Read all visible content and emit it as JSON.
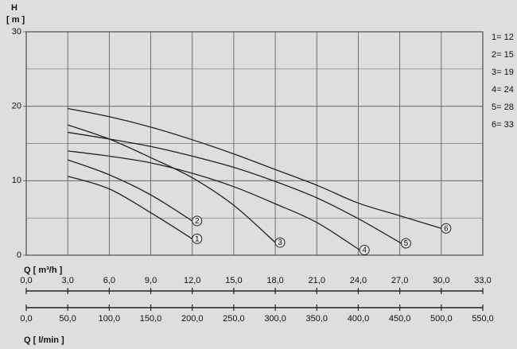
{
  "chart_data": {
    "type": "line",
    "ylabel": "H",
    "yunit": "[ m ]",
    "xlabel": "Q [ m³/h ]",
    "x2label": "Q [ l/min ]",
    "xlim": [
      0,
      33
    ],
    "xticks": [
      {
        "value": 0,
        "label": "0,0"
      },
      {
        "value": 3,
        "label": "3,0"
      },
      {
        "value": 6,
        "label": "6,0"
      },
      {
        "value": 9,
        "label": "9,0"
      },
      {
        "value": 12,
        "label": "12,0"
      },
      {
        "value": 15,
        "label": "15,0"
      },
      {
        "value": 18,
        "label": "18,0"
      },
      {
        "value": 21,
        "label": "21,0"
      },
      {
        "value": 24,
        "label": "24,0"
      },
      {
        "value": 27,
        "label": "27,0"
      },
      {
        "value": 30,
        "label": "30,0"
      },
      {
        "value": 33,
        "label": "33,0"
      }
    ],
    "x2lim": [
      0,
      550
    ],
    "x2ticks": [
      {
        "value": 0,
        "label": "0,0"
      },
      {
        "value": 50,
        "label": "50,0"
      },
      {
        "value": 100,
        "label": "100,0"
      },
      {
        "value": 150,
        "label": "150,0"
      },
      {
        "value": 200,
        "label": "200,0"
      },
      {
        "value": 250,
        "label": "250,0"
      },
      {
        "value": 300,
        "label": "300,0"
      },
      {
        "value": 350,
        "label": "350,0"
      },
      {
        "value": 400,
        "label": "400,0"
      },
      {
        "value": 450,
        "label": "450,0"
      },
      {
        "value": 500,
        "label": "500,0"
      },
      {
        "value": 550,
        "label": "550,0"
      }
    ],
    "ylim": [
      0,
      30
    ],
    "yticks": [
      0,
      10,
      20,
      30
    ],
    "yminor": [
      5,
      15,
      25
    ],
    "grid": true,
    "color": "#222222",
    "legend": [
      "1= 12",
      "2= 15",
      "3= 19",
      "4= 24",
      "5= 28",
      "6= 33"
    ],
    "series": [
      {
        "name": "1",
        "x": [
          3,
          6,
          9,
          12
        ],
        "values": [
          10.6,
          8.9,
          5.7,
          2.2
        ]
      },
      {
        "name": "2",
        "x": [
          3,
          6,
          9,
          12
        ],
        "values": [
          12.8,
          10.8,
          8.1,
          4.6
        ]
      },
      {
        "name": "3",
        "x": [
          3,
          6,
          9,
          12,
          15,
          18
        ],
        "values": [
          17.5,
          15.6,
          13.1,
          10.4,
          6.7,
          1.7
        ]
      },
      {
        "name": "4",
        "x": [
          3,
          6,
          9,
          12,
          15,
          18,
          21,
          24.1
        ],
        "values": [
          14.0,
          13.3,
          12.4,
          11.0,
          9.2,
          6.9,
          4.4,
          0.7
        ]
      },
      {
        "name": "5",
        "x": [
          3,
          6,
          9,
          12,
          15,
          18,
          21,
          24,
          27.1
        ],
        "values": [
          16.5,
          15.6,
          14.6,
          13.3,
          11.8,
          9.9,
          7.7,
          4.9,
          1.6
        ]
      },
      {
        "name": "6",
        "x": [
          3,
          6,
          9,
          12,
          15,
          18,
          21,
          24,
          27,
          30
        ],
        "values": [
          19.7,
          18.6,
          17.2,
          15.5,
          13.6,
          11.5,
          9.4,
          7.0,
          5.3,
          3.6
        ]
      }
    ]
  }
}
